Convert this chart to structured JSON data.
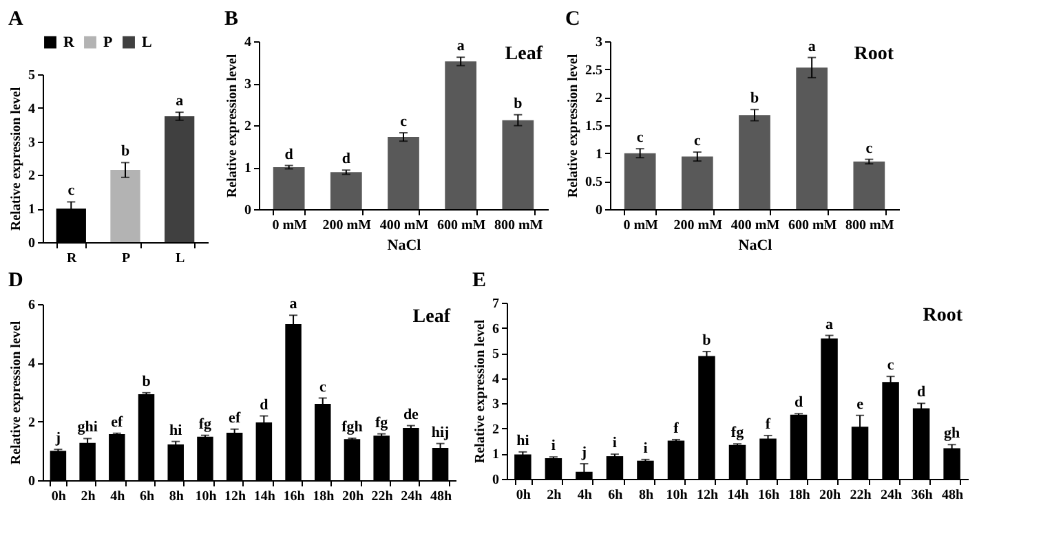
{
  "chart_data": [
    {
      "type": "bar",
      "title": "A",
      "ylabel": "Relative expression level",
      "categories": [
        "R",
        "P",
        "L"
      ],
      "series": [
        {
          "name": "R",
          "color": "#000000",
          "values": [
            1.0,
            null,
            null
          ],
          "errors": [
            0.2,
            null,
            null
          ],
          "value_labels": [
            "c",
            null,
            null
          ]
        },
        {
          "name": "P",
          "color": "#b3b3b3",
          "values": [
            null,
            2.15,
            null
          ],
          "errors": [
            null,
            0.22,
            null
          ],
          "value_labels": [
            null,
            "b",
            null
          ]
        },
        {
          "name": "L",
          "color": "#404040",
          "values": [
            null,
            null,
            3.75
          ],
          "errors": [
            null,
            null,
            0.12
          ],
          "value_labels": [
            null,
            null,
            "a"
          ]
        }
      ],
      "legend": "top",
      "ylim": [
        0,
        5
      ],
      "yticks": [
        0,
        1,
        2,
        3,
        4,
        5
      ]
    },
    {
      "type": "bar",
      "title": "B",
      "ylabel": "Relative expression level",
      "xlabel": "NaCl",
      "annotations": [
        "Leaf"
      ],
      "categories": [
        "0 mM",
        "200 mM",
        "400 mM",
        "600 mM",
        "800 mM"
      ],
      "values": [
        1.0,
        0.88,
        1.72,
        3.52,
        2.12
      ],
      "errors": [
        0.04,
        0.05,
        0.1,
        0.1,
        0.13
      ],
      "value_labels": [
        "d",
        "d",
        "c",
        "a",
        "b"
      ],
      "color": "#595959",
      "ylim": [
        0,
        4
      ],
      "yticks": [
        0,
        1,
        2,
        3,
        4
      ]
    },
    {
      "type": "bar",
      "title": "C",
      "ylabel": "Relative expression level",
      "xlabel": "NaCl",
      "annotations": [
        "Root"
      ],
      "categories": [
        "0 mM",
        "200 mM",
        "400 mM",
        "600 mM",
        "800 mM"
      ],
      "values": [
        1.0,
        0.94,
        1.68,
        2.53,
        0.85
      ],
      "errors": [
        0.08,
        0.08,
        0.1,
        0.18,
        0.04
      ],
      "value_labels": [
        "c",
        "c",
        "b",
        "a",
        "c"
      ],
      "color": "#595959",
      "ylim": [
        0,
        3
      ],
      "yticks": [
        0,
        0.5,
        1,
        1.5,
        2,
        2.5,
        3
      ]
    },
    {
      "type": "bar",
      "title": "D",
      "ylabel": "Relative expression level",
      "annotations": [
        "Leaf"
      ],
      "categories": [
        "0h",
        "2h",
        "4h",
        "6h",
        "8h",
        "10h",
        "12h",
        "14h",
        "16h",
        "18h",
        "20h",
        "22h",
        "24h",
        "48h"
      ],
      "values": [
        1.0,
        1.27,
        1.57,
        2.93,
        1.22,
        1.48,
        1.62,
        1.97,
        5.32,
        2.6,
        1.4,
        1.52,
        1.78,
        1.1
      ],
      "errors": [
        0.05,
        0.15,
        0.03,
        0.05,
        0.1,
        0.05,
        0.12,
        0.22,
        0.3,
        0.2,
        0.03,
        0.06,
        0.08,
        0.15
      ],
      "value_labels": [
        "j",
        "ghi",
        "ef",
        "b",
        "hi",
        "fg",
        "ef",
        "d",
        "a",
        "c",
        "fgh",
        "fg",
        "de",
        "hij"
      ],
      "color": "#000000",
      "ylim": [
        0,
        6
      ],
      "yticks": [
        0,
        2,
        4,
        6
      ]
    },
    {
      "type": "bar",
      "title": "E",
      "ylabel": "Relative expression level",
      "annotations": [
        "Root"
      ],
      "categories": [
        "0h",
        "2h",
        "4h",
        "6h",
        "8h",
        "10h",
        "12h",
        "14h",
        "16h",
        "18h",
        "20h",
        "22h",
        "24h",
        "36h",
        "48h"
      ],
      "values": [
        0.97,
        0.82,
        0.28,
        0.9,
        0.72,
        1.52,
        4.88,
        1.35,
        1.6,
        2.55,
        5.58,
        2.07,
        3.85,
        2.8,
        1.22
      ],
      "errors": [
        0.1,
        0.05,
        [
          0.1,
          0.6
        ],
        0.08,
        0.05,
        0.04,
        0.18,
        0.04,
        0.12,
        0.04,
        0.12,
        0.45,
        0.22,
        0.2,
        0.14
      ],
      "value_labels": [
        "hi",
        "i",
        "j",
        "i",
        "i",
        "f",
        "b",
        "fg",
        "f",
        "d",
        "a",
        "e",
        "c",
        "d",
        "gh"
      ],
      "color": "#000000",
      "ylim": [
        0,
        7
      ],
      "yticks": [
        0,
        1,
        2,
        3,
        4,
        5,
        6,
        7
      ]
    }
  ]
}
